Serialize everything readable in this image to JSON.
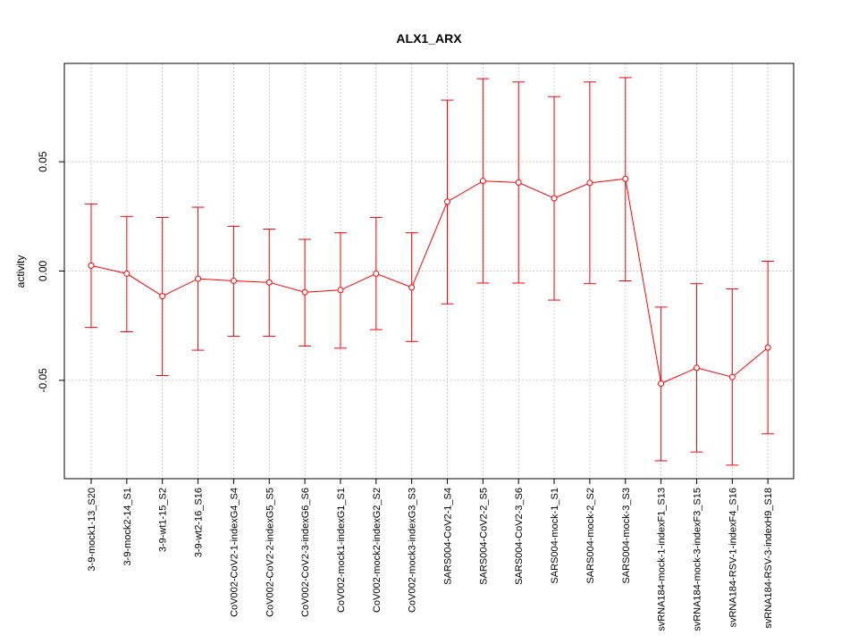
{
  "chart_data": {
    "type": "line",
    "title": "ALX1_ARX",
    "xlabel": "",
    "ylabel": "activity",
    "ylim": [
      -0.095,
      0.095
    ],
    "yticks": [
      -0.05,
      0.0,
      0.05
    ],
    "ytick_labels": [
      "-0.05",
      "0.00",
      "0.05"
    ],
    "grid": true,
    "color": "#ff0000",
    "categories": [
      "3-9-mock1-13_S20",
      "3-9-mock2-14_S1",
      "3-9-wt1-15_S2",
      "3-9-wt2-16_S16",
      "CoV002-CoV2-1-indexG4_S4",
      "CoV002-CoV2-2-indexG5_S5",
      "CoV002-CoV2-3-indexG6_S6",
      "CoV002-mock1-indexG1_S1",
      "CoV002-mock2-indexG2_S2",
      "CoV002-mock3-indexG3_S3",
      "SARS004-CoV2-1_S4",
      "SARS004-CoV2-2_S5",
      "SARS004-CoV2-3_S6",
      "SARS004-mock-1_S1",
      "SARS004-mock-2_S2",
      "SARS004-mock-3_S3",
      "svRNA184-mock-1-indexF1_S13",
      "svRNA184-mock-3-indexF3_S15",
      "svRNA184-RSV-1-indexF4_S16",
      "svRNA184-RSV-3-indexH9_S18"
    ],
    "series": [
      {
        "values": [
          0.0025,
          -0.0012,
          -0.0115,
          -0.0035,
          -0.0045,
          -0.0052,
          -0.0097,
          -0.0087,
          -0.0012,
          -0.0075,
          0.0317,
          0.0412,
          0.0405,
          0.0333,
          0.0403,
          0.0422,
          -0.0515,
          -0.0443,
          -0.0485,
          -0.035
        ],
        "lower": [
          -0.0258,
          -0.0278,
          -0.0478,
          -0.0362,
          -0.0298,
          -0.0298,
          -0.0343,
          -0.0353,
          -0.0268,
          -0.0322,
          -0.015,
          -0.0055,
          -0.0055,
          -0.0133,
          -0.0058,
          -0.0045,
          -0.0868,
          -0.0828,
          -0.0888,
          -0.0745
        ],
        "upper": [
          0.0307,
          0.025,
          0.0245,
          0.0292,
          0.0205,
          0.0192,
          0.0145,
          0.0175,
          0.0245,
          0.0175,
          0.0782,
          0.088,
          0.0865,
          0.0798,
          0.0865,
          0.0885,
          -0.0165,
          -0.0058,
          -0.0082,
          0.0045
        ]
      }
    ]
  }
}
